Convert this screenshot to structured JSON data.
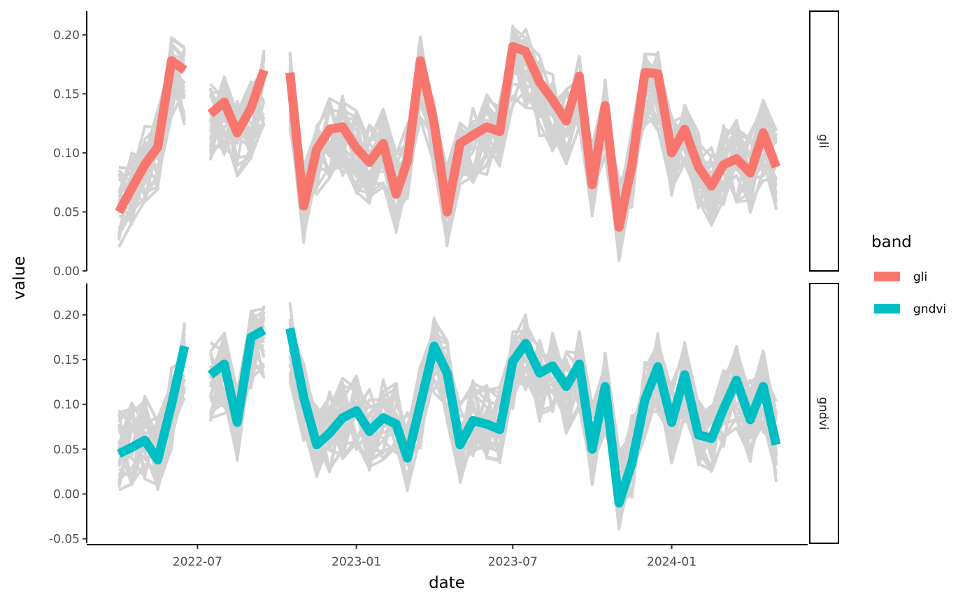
{
  "chart_data": {
    "type": "line",
    "xlabel": "date",
    "ylabel": "value",
    "x_ticks": [
      "2022-07",
      "2023-01",
      "2023-07",
      "2024-01"
    ],
    "xlim": [
      "2022-04-01",
      "2024-05-01"
    ],
    "dates": [
      "2022-04-01",
      "2022-04-16",
      "2022-05-01",
      "2022-05-16",
      "2022-06-01",
      "2022-06-16",
      "2022-07-01",
      "2022-07-16",
      "2022-08-01",
      "2022-08-16",
      "2022-09-01",
      "2022-09-16",
      "2022-10-01",
      "2022-10-16",
      "2022-11-01",
      "2022-11-16",
      "2022-12-01",
      "2022-12-16",
      "2023-01-01",
      "2023-01-16",
      "2023-02-01",
      "2023-02-16",
      "2023-03-01",
      "2023-03-16",
      "2023-04-01",
      "2023-04-16",
      "2023-05-01",
      "2023-05-16",
      "2023-06-01",
      "2023-06-16",
      "2023-07-01",
      "2023-07-16",
      "2023-08-01",
      "2023-08-16",
      "2023-09-01",
      "2023-09-16",
      "2023-10-01",
      "2023-10-16",
      "2023-11-01",
      "2023-11-16",
      "2023-12-01",
      "2023-12-16",
      "2024-01-01",
      "2024-01-16",
      "2024-02-01",
      "2024-02-16",
      "2024-03-01",
      "2024-03-16",
      "2024-04-01",
      "2024-04-16",
      "2024-05-01"
    ],
    "background_line_color": "#d3d3d3",
    "legend": {
      "title": "band",
      "placement": "right",
      "entries": [
        {
          "label": "gli",
          "color": "#F8766D"
        },
        {
          "label": "gndvi",
          "color": "#00BFC4"
        }
      ]
    },
    "panels": [
      {
        "band": "gli",
        "strip_label": "gli",
        "color": "#F8766D",
        "ylim": [
          0.0,
          0.22
        ],
        "y_ticks": [
          "0.00",
          "0.05",
          "0.10",
          "0.15",
          "0.20"
        ],
        "highlight_series": [
          {
            "date": "2022-04-01",
            "value": 0.05
          },
          {
            "date": "2022-04-16",
            "value": 0.07
          },
          {
            "date": "2022-05-01",
            "value": 0.09
          },
          {
            "date": "2022-05-16",
            "value": 0.105
          },
          {
            "date": "2022-06-01",
            "value": 0.178
          },
          {
            "date": "2022-06-16",
            "value": 0.17
          },
          {
            "date": "2022-07-01",
            "value": null
          },
          {
            "date": "2022-07-16",
            "value": 0.133
          },
          {
            "date": "2022-08-01",
            "value": 0.143
          },
          {
            "date": "2022-08-16",
            "value": 0.117
          },
          {
            "date": "2022-09-01",
            "value": 0.138
          },
          {
            "date": "2022-09-16",
            "value": 0.17
          },
          {
            "date": "2022-10-01",
            "value": null
          },
          {
            "date": "2022-10-16",
            "value": 0.168
          },
          {
            "date": "2022-11-01",
            "value": 0.055
          },
          {
            "date": "2022-11-16",
            "value": 0.103
          },
          {
            "date": "2022-12-01",
            "value": 0.12
          },
          {
            "date": "2022-12-16",
            "value": 0.122
          },
          {
            "date": "2023-01-01",
            "value": 0.104
          },
          {
            "date": "2023-01-16",
            "value": 0.092
          },
          {
            "date": "2023-02-01",
            "value": 0.108
          },
          {
            "date": "2023-02-16",
            "value": 0.065
          },
          {
            "date": "2023-03-01",
            "value": 0.093
          },
          {
            "date": "2023-03-16",
            "value": 0.178
          },
          {
            "date": "2023-04-01",
            "value": 0.125
          },
          {
            "date": "2023-04-16",
            "value": 0.05
          },
          {
            "date": "2023-05-01",
            "value": 0.108
          },
          {
            "date": "2023-05-16",
            "value": 0.115
          },
          {
            "date": "2023-06-01",
            "value": 0.122
          },
          {
            "date": "2023-06-16",
            "value": 0.118
          },
          {
            "date": "2023-07-01",
            "value": 0.19
          },
          {
            "date": "2023-07-16",
            "value": 0.186
          },
          {
            "date": "2023-08-01",
            "value": 0.16
          },
          {
            "date": "2023-08-16",
            "value": 0.145
          },
          {
            "date": "2023-09-01",
            "value": 0.127
          },
          {
            "date": "2023-09-16",
            "value": 0.165
          },
          {
            "date": "2023-10-01",
            "value": 0.073
          },
          {
            "date": "2023-10-16",
            "value": 0.14
          },
          {
            "date": "2023-11-01",
            "value": 0.037
          },
          {
            "date": "2023-11-16",
            "value": 0.09
          },
          {
            "date": "2023-12-01",
            "value": 0.168
          },
          {
            "date": "2023-12-16",
            "value": 0.167
          },
          {
            "date": "2024-01-01",
            "value": 0.1
          },
          {
            "date": "2024-01-16",
            "value": 0.12
          },
          {
            "date": "2024-02-01",
            "value": 0.088
          },
          {
            "date": "2024-02-16",
            "value": 0.072
          },
          {
            "date": "2024-03-01",
            "value": 0.09
          },
          {
            "date": "2024-03-16",
            "value": 0.095
          },
          {
            "date": "2024-04-01",
            "value": 0.083
          },
          {
            "date": "2024-04-16",
            "value": 0.117
          },
          {
            "date": "2024-05-01",
            "value": 0.088
          }
        ]
      },
      {
        "band": "gndvi",
        "strip_label": "gndvi",
        "color": "#00BFC4",
        "ylim": [
          -0.055,
          0.235
        ],
        "y_ticks": [
          "-0.05",
          "0.00",
          "0.05",
          "0.10",
          "0.15",
          "0.20"
        ],
        "highlight_series": [
          {
            "date": "2022-04-01",
            "value": 0.045
          },
          {
            "date": "2022-04-16",
            "value": 0.052
          },
          {
            "date": "2022-05-01",
            "value": 0.06
          },
          {
            "date": "2022-05-16",
            "value": 0.038
          },
          {
            "date": "2022-06-01",
            "value": 0.1
          },
          {
            "date": "2022-06-16",
            "value": 0.165
          },
          {
            "date": "2022-07-01",
            "value": null
          },
          {
            "date": "2022-07-16",
            "value": 0.133
          },
          {
            "date": "2022-08-01",
            "value": 0.145
          },
          {
            "date": "2022-08-16",
            "value": 0.08
          },
          {
            "date": "2022-09-01",
            "value": 0.175
          },
          {
            "date": "2022-09-16",
            "value": 0.183
          },
          {
            "date": "2022-10-01",
            "value": null
          },
          {
            "date": "2022-10-16",
            "value": 0.185
          },
          {
            "date": "2022-11-01",
            "value": 0.108
          },
          {
            "date": "2022-11-16",
            "value": 0.055
          },
          {
            "date": "2022-12-01",
            "value": 0.068
          },
          {
            "date": "2022-12-16",
            "value": 0.085
          },
          {
            "date": "2023-01-01",
            "value": 0.093
          },
          {
            "date": "2023-01-16",
            "value": 0.07
          },
          {
            "date": "2023-02-01",
            "value": 0.085
          },
          {
            "date": "2023-02-16",
            "value": 0.078
          },
          {
            "date": "2023-03-01",
            "value": 0.04
          },
          {
            "date": "2023-03-16",
            "value": 0.1
          },
          {
            "date": "2023-04-01",
            "value": 0.165
          },
          {
            "date": "2023-04-16",
            "value": 0.135
          },
          {
            "date": "2023-05-01",
            "value": 0.055
          },
          {
            "date": "2023-05-16",
            "value": 0.082
          },
          {
            "date": "2023-06-01",
            "value": 0.078
          },
          {
            "date": "2023-06-16",
            "value": 0.072
          },
          {
            "date": "2023-07-01",
            "value": 0.148
          },
          {
            "date": "2023-07-16",
            "value": 0.168
          },
          {
            "date": "2023-08-01",
            "value": 0.135
          },
          {
            "date": "2023-08-16",
            "value": 0.143
          },
          {
            "date": "2023-09-01",
            "value": 0.12
          },
          {
            "date": "2023-09-16",
            "value": 0.145
          },
          {
            "date": "2023-10-01",
            "value": 0.05
          },
          {
            "date": "2023-10-16",
            "value": 0.12
          },
          {
            "date": "2023-11-01",
            "value": -0.01
          },
          {
            "date": "2023-11-16",
            "value": 0.035
          },
          {
            "date": "2023-12-01",
            "value": 0.105
          },
          {
            "date": "2023-12-16",
            "value": 0.142
          },
          {
            "date": "2024-01-01",
            "value": 0.08
          },
          {
            "date": "2024-01-16",
            "value": 0.133
          },
          {
            "date": "2024-02-01",
            "value": 0.066
          },
          {
            "date": "2024-02-16",
            "value": 0.062
          },
          {
            "date": "2024-03-01",
            "value": 0.095
          },
          {
            "date": "2024-03-16",
            "value": 0.127
          },
          {
            "date": "2024-04-01",
            "value": 0.083
          },
          {
            "date": "2024-04-16",
            "value": 0.12
          },
          {
            "date": "2024-05-01",
            "value": 0.055
          }
        ]
      }
    ]
  }
}
